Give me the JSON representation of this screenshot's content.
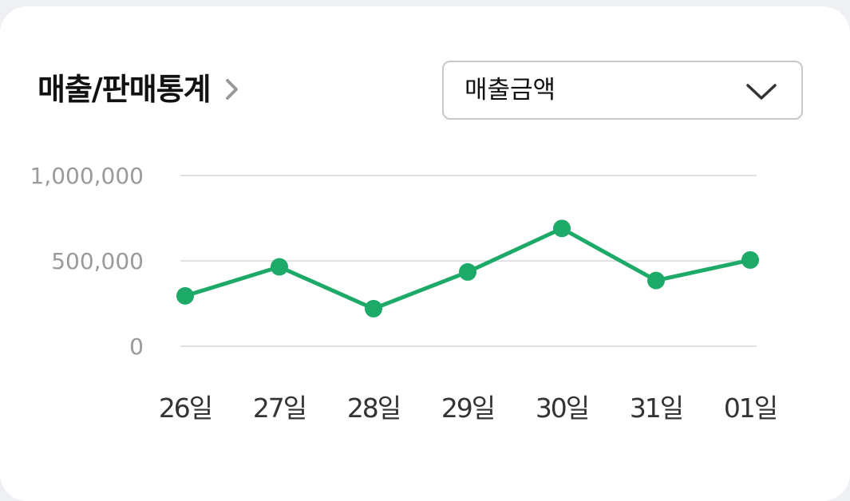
{
  "header": {
    "title": "매출/판매통계"
  },
  "selector": {
    "selected": "매출금액"
  },
  "colors": {
    "line": "#1daa68",
    "grid": "#e1e1e1"
  },
  "chart_data": {
    "type": "line",
    "categories": [
      "26일",
      "27일",
      "28일",
      "29일",
      "30일",
      "31일",
      "01일"
    ],
    "values": [
      295000,
      465000,
      220000,
      435000,
      690000,
      385000,
      505000
    ],
    "ylim": [
      0,
      1000000
    ],
    "yticks": [
      0,
      500000,
      1000000
    ],
    "ytick_labels": [
      "0",
      "500,000",
      "1,000,000"
    ],
    "grid": true
  }
}
